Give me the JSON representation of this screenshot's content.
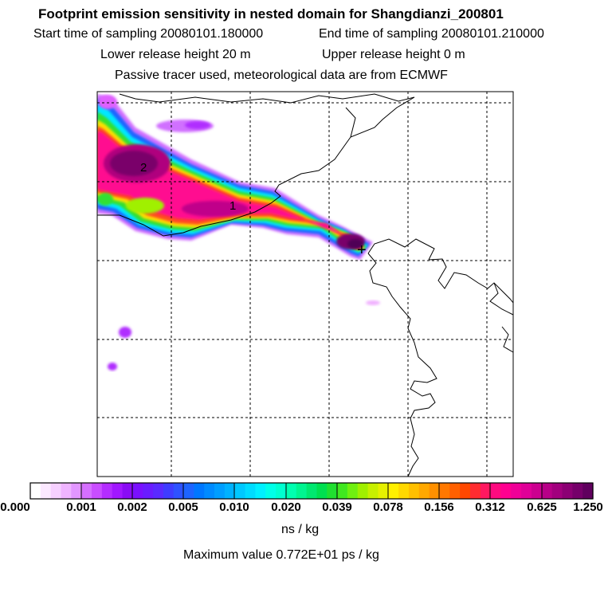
{
  "header": {
    "title": "Footprint emission sensitivity in nested domain for Shangdianzi_200801",
    "start_label": "Start time of sampling 20080101.180000",
    "end_label": "End time of sampling 20080101.210000",
    "lower_label": "Lower release height   20 m",
    "upper_label": "Upper release height    0 m",
    "info": "Passive tracer used, meteorological data are from ECMWF"
  },
  "map": {
    "contour_labels": [
      "2",
      "1"
    ],
    "site_marker": "+"
  },
  "colorbar": {
    "tick_labels": [
      "0.000",
      "0.001",
      "0.002",
      "0.005",
      "0.010",
      "0.020",
      "0.039",
      "0.078",
      "0.156",
      "0.312",
      "0.625",
      "1.250"
    ],
    "colors": [
      "#ffffff",
      "#fbe8ff",
      "#f6d0ff",
      "#efb4ff",
      "#e296ff",
      "#d56fff",
      "#c94dff",
      "#b42dff",
      "#a117ff",
      "#8a0cf5",
      "#7a10ff",
      "#6a1cff",
      "#5a2aff",
      "#3f3cff",
      "#2e52ff",
      "#1e64ff",
      "#0077ff",
      "#008bff",
      "#009eff",
      "#00b2ff",
      "#00c8ff",
      "#00dcff",
      "#00f0ff",
      "#00ffe8",
      "#00ffd0",
      "#00ffb0",
      "#00f590",
      "#00e870",
      "#00e050",
      "#20e030",
      "#40e820",
      "#70f010",
      "#a0f000",
      "#c8f000",
      "#e6f000",
      "#fff000",
      "#ffd800",
      "#ffc000",
      "#ffa800",
      "#ff9000",
      "#ff7800",
      "#ff6000",
      "#ff4800",
      "#ff2c30",
      "#ff1860",
      "#ff0a80",
      "#ff0090",
      "#f00098",
      "#e00098",
      "#cc0090",
      "#b80088",
      "#a2007e",
      "#8c0074",
      "#76006a",
      "#60005e"
    ],
    "units": "ns / kg",
    "max_value": "Maximum value  0.772E+01 ps / kg"
  }
}
